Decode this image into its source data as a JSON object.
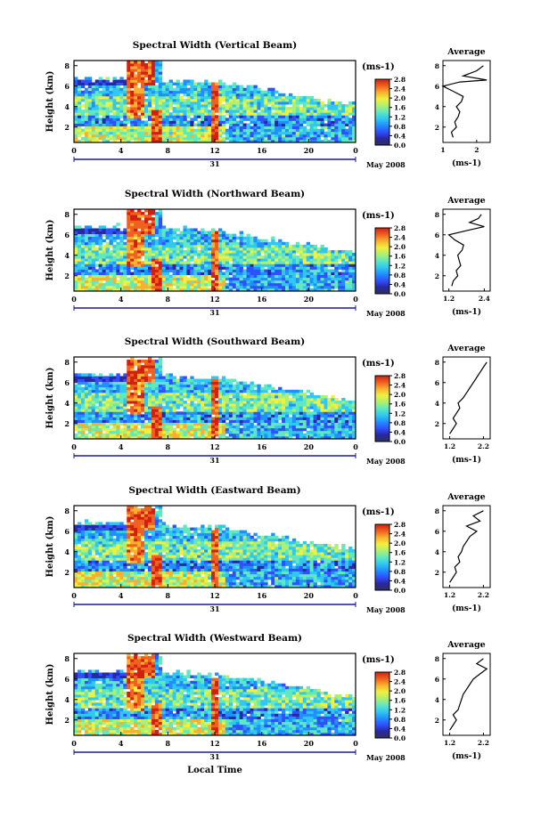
{
  "colors": {
    "scale": [
      "#303060",
      "#2828a0",
      "#3050ff",
      "#2090ff",
      "#30c8f0",
      "#60e8c0",
      "#b0f070",
      "#f0f040",
      "#f8b030",
      "#f06020",
      "#d02010"
    ],
    "axis": "#000000",
    "trace": "#000000"
  },
  "chart_data": [
    {
      "type": "heatmap",
      "title": "Spectral Width (Vertical Beam)",
      "ylabel": "Height (km)",
      "x_ticks": [
        "0",
        "4",
        "8",
        "12",
        "16",
        "20",
        "0"
      ],
      "y_ticks": [
        "2",
        "4",
        "6",
        "8"
      ],
      "xlim": [
        0,
        24
      ],
      "ylim": [
        0.5,
        8.5
      ],
      "date_tick": "31",
      "date_label": "May 2008",
      "colorbar": {
        "unit": "(ms-1)",
        "ticks": [
          "0.0",
          "0.4",
          "0.8",
          "1.2",
          "1.6",
          "2.0",
          "2.4",
          "2.8"
        ],
        "range": [
          0.0,
          2.8
        ]
      },
      "average": {
        "title": "Average",
        "xlabel": "(ms-1)",
        "x_ticks": [
          "1",
          "2"
        ],
        "xlim": [
          1.0,
          2.4
        ],
        "y_ticks": [
          "2",
          "4",
          "6",
          "8"
        ],
        "profile": [
          [
            1.3,
            1
          ],
          [
            1.25,
            1.5
          ],
          [
            1.4,
            2
          ],
          [
            1.35,
            2.5
          ],
          [
            1.45,
            3
          ],
          [
            1.5,
            3.5
          ],
          [
            1.4,
            4
          ],
          [
            1.55,
            4.5
          ],
          [
            1.6,
            5
          ],
          [
            1.3,
            5.5
          ],
          [
            1.0,
            6
          ],
          [
            1.5,
            6.4
          ],
          [
            2.3,
            6.6
          ],
          [
            1.6,
            7
          ],
          [
            2.0,
            7.5
          ],
          [
            2.2,
            8
          ]
        ]
      }
    },
    {
      "type": "heatmap",
      "title": "Spectral Width (Northward Beam)",
      "ylabel": "Height (km)",
      "x_ticks": [
        "0",
        "4",
        "8",
        "12",
        "16",
        "20",
        "0"
      ],
      "y_ticks": [
        "2",
        "4",
        "6",
        "8"
      ],
      "xlim": [
        0,
        24
      ],
      "ylim": [
        0.5,
        8.5
      ],
      "date_tick": "31",
      "date_label": "May 2008",
      "colorbar": {
        "unit": "(ms-1)",
        "ticks": [
          "0.0",
          "0.4",
          "0.8",
          "1.2",
          "1.6",
          "2.0",
          "2.4",
          "2.8"
        ],
        "range": [
          0.0,
          2.8
        ]
      },
      "average": {
        "title": "Average",
        "xlabel": "(ms-1)",
        "x_ticks": [
          "1.2",
          "2.4"
        ],
        "xlim": [
          1.0,
          2.6
        ],
        "y_ticks": [
          "2",
          "4",
          "6",
          "8"
        ],
        "profile": [
          [
            1.3,
            1
          ],
          [
            1.35,
            1.5
          ],
          [
            1.5,
            2
          ],
          [
            1.45,
            2.5
          ],
          [
            1.6,
            3
          ],
          [
            1.55,
            3.5
          ],
          [
            1.5,
            4
          ],
          [
            1.65,
            4.5
          ],
          [
            1.7,
            5
          ],
          [
            1.4,
            5.5
          ],
          [
            1.2,
            6
          ],
          [
            1.8,
            6.4
          ],
          [
            2.4,
            6.8
          ],
          [
            1.9,
            7.2
          ],
          [
            2.2,
            7.6
          ],
          [
            2.3,
            8
          ]
        ]
      }
    },
    {
      "type": "heatmap",
      "title": "Spectral Width (Southward Beam)",
      "ylabel": "Height (km)",
      "x_ticks": [
        "0",
        "4",
        "8",
        "12",
        "16",
        "20",
        "0"
      ],
      "y_ticks": [
        "2",
        "4",
        "6",
        "8"
      ],
      "xlim": [
        0,
        24
      ],
      "ylim": [
        0.5,
        8.5
      ],
      "date_tick": "31",
      "date_label": "May 2008",
      "colorbar": {
        "unit": "(ms-1)",
        "ticks": [
          "0.0",
          "0.4",
          "0.8",
          "1.2",
          "1.6",
          "2.0",
          "2.4",
          "2.8"
        ],
        "range": [
          0.0,
          2.8
        ]
      },
      "average": {
        "title": "Average",
        "xlabel": "(ms-1)",
        "x_ticks": [
          "1.2",
          "2.2"
        ],
        "xlim": [
          1.0,
          2.4
        ],
        "y_ticks": [
          "2",
          "4",
          "6",
          "8"
        ],
        "profile": [
          [
            1.2,
            1
          ],
          [
            1.3,
            1.5
          ],
          [
            1.4,
            2
          ],
          [
            1.3,
            2.5
          ],
          [
            1.4,
            3
          ],
          [
            1.5,
            3.5
          ],
          [
            1.45,
            4
          ],
          [
            1.6,
            4.5
          ],
          [
            1.7,
            5
          ],
          [
            1.8,
            5.5
          ],
          [
            1.9,
            6
          ],
          [
            2.0,
            6.5
          ],
          [
            2.1,
            7
          ],
          [
            2.2,
            7.5
          ],
          [
            2.3,
            8
          ]
        ]
      }
    },
    {
      "type": "heatmap",
      "title": "Spectral Width (Eastward Beam)",
      "ylabel": "Height (km)",
      "x_ticks": [
        "0",
        "4",
        "8",
        "12",
        "16",
        "20",
        "0"
      ],
      "y_ticks": [
        "2",
        "4",
        "6",
        "8"
      ],
      "xlim": [
        0,
        24
      ],
      "ylim": [
        0.5,
        8.5
      ],
      "date_tick": "31",
      "date_label": "May 2008",
      "colorbar": {
        "unit": "(ms-1)",
        "ticks": [
          "0.0",
          "0.4",
          "0.8",
          "1.2",
          "1.6",
          "2.0",
          "2.4",
          "2.8"
        ],
        "range": [
          0.0,
          2.8
        ]
      },
      "average": {
        "title": "Average",
        "xlabel": "(ms-1)",
        "x_ticks": [
          "1.2",
          "2.2"
        ],
        "xlim": [
          1.0,
          2.4
        ],
        "y_ticks": [
          "2",
          "4",
          "6",
          "8"
        ],
        "profile": [
          [
            1.2,
            1
          ],
          [
            1.3,
            1.5
          ],
          [
            1.4,
            2
          ],
          [
            1.35,
            2.5
          ],
          [
            1.5,
            3
          ],
          [
            1.45,
            3.5
          ],
          [
            1.55,
            4
          ],
          [
            1.6,
            4.5
          ],
          [
            1.7,
            5
          ],
          [
            1.8,
            5.5
          ],
          [
            2.0,
            6
          ],
          [
            1.7,
            6.5
          ],
          [
            2.1,
            7
          ],
          [
            1.9,
            7.5
          ],
          [
            2.2,
            8
          ]
        ]
      }
    },
    {
      "type": "heatmap",
      "title": "Spectral Width (Westward Beam)",
      "ylabel": "Height (km)",
      "xlabel": "Local Time",
      "x_ticks": [
        "0",
        "4",
        "8",
        "12",
        "16",
        "20",
        "0"
      ],
      "y_ticks": [
        "2",
        "4",
        "6",
        "8"
      ],
      "xlim": [
        0,
        24
      ],
      "ylim": [
        0.5,
        8.5
      ],
      "date_tick": "31",
      "date_label": "May 2008",
      "colorbar": {
        "unit": "(ms-1)",
        "ticks": [
          "0.0",
          "0.4",
          "0.8",
          "1.2",
          "1.6",
          "2.0",
          "2.4",
          "2.8"
        ],
        "range": [
          0.0,
          2.8
        ]
      },
      "average": {
        "title": "Average",
        "xlabel": "(ms-1)",
        "x_ticks": [
          "1.2",
          "2.2"
        ],
        "xlim": [
          1.0,
          2.4
        ],
        "y_ticks": [
          "2",
          "4",
          "6",
          "8"
        ],
        "profile": [
          [
            1.2,
            1
          ],
          [
            1.3,
            1.5
          ],
          [
            1.4,
            2
          ],
          [
            1.3,
            2.5
          ],
          [
            1.45,
            3
          ],
          [
            1.5,
            3.5
          ],
          [
            1.55,
            4
          ],
          [
            1.6,
            4.5
          ],
          [
            1.7,
            5
          ],
          [
            1.8,
            5.5
          ],
          [
            1.9,
            6
          ],
          [
            2.1,
            6.5
          ],
          [
            2.3,
            7
          ],
          [
            2.0,
            7.5
          ],
          [
            2.2,
            8
          ]
        ]
      }
    }
  ]
}
